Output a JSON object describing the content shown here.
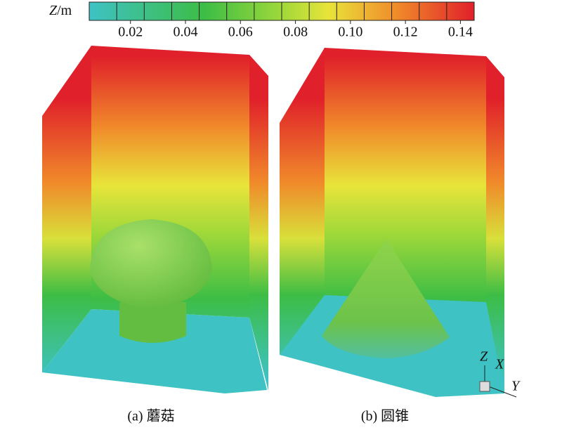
{
  "colorbar": {
    "label": {
      "variable": "Z",
      "unit": "/m"
    },
    "range": [
      0.005,
      0.145
    ],
    "ticks": [
      0.02,
      0.04,
      0.06,
      0.08,
      {
        "value": 0.1,
        "label": "0.10"
      },
      0.12,
      0.14
    ]
  },
  "panels": [
    {
      "caption": "(a) 蘑菇"
    },
    {
      "caption": "(b) 圆锥"
    }
  ],
  "axes_triad": {
    "z": "Z",
    "x": "X",
    "y": "Y"
  }
}
